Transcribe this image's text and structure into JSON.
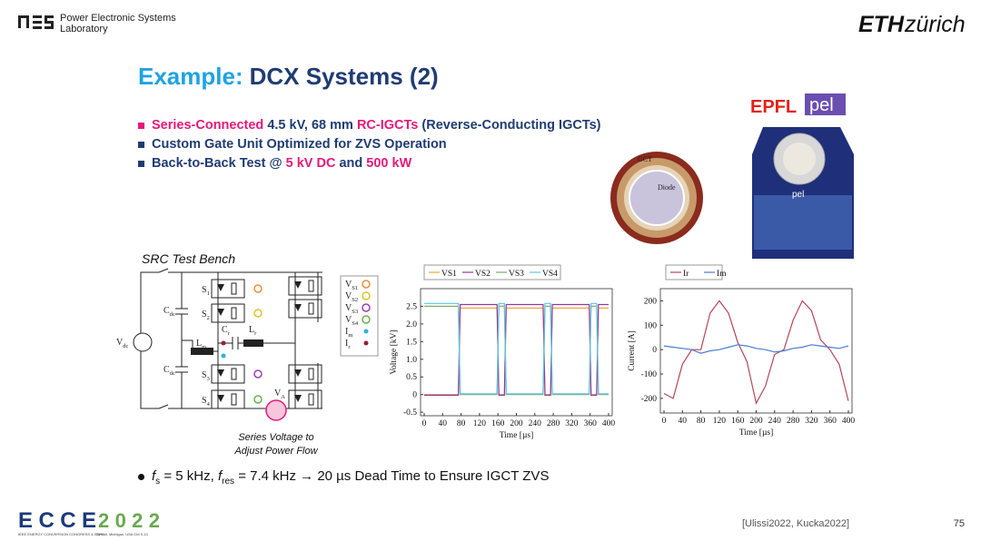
{
  "header": {
    "lab_name": [
      "Power Electronic Systems",
      "Laboratory"
    ],
    "university": {
      "bold": "ETH",
      "light": "zürich"
    }
  },
  "slide": {
    "title": {
      "prefix": "Example:",
      "main": "DCX Systems (2)"
    },
    "bullets": [
      {
        "segments": [
          {
            "text": "Series-Connected ",
            "color": "#e6197a"
          },
          {
            "text": "4.5 kV, 68 mm ",
            "color": "#1f3c73"
          },
          {
            "text": "RC-IGCTs",
            "color": "#e6197a"
          },
          {
            "text": " (Reverse-Conducting IGCTs)",
            "color": "#1f3c73"
          }
        ]
      },
      {
        "segments": [
          {
            "text": "Custom Gate Unit Optimized for ZVS Operation",
            "color": "#1f3c73"
          }
        ]
      },
      {
        "segments": [
          {
            "text": "Back-to-Back Test @ ",
            "color": "#1f3c73"
          },
          {
            "text": "5 kV DC",
            "color": "#e6197a"
          },
          {
            "text": " and ",
            "color": "#1f3c73"
          },
          {
            "text": "500 kW",
            "color": "#e6197a"
          }
        ]
      }
    ],
    "note": {
      "segments": [
        {
          "text": "f",
          "style": "italic"
        },
        {
          "text": "s",
          "style": "sub"
        },
        {
          "text": " = 5 kHz, ",
          "style": "normal"
        },
        {
          "text": "f",
          "style": "italic"
        },
        {
          "text": "res",
          "style": "sub"
        },
        {
          "text": " = 7.4 kHz → 20 µs Dead Time to Ensure IGCT ZVS",
          "style": "normal"
        }
      ]
    }
  },
  "circuit": {
    "title": "SRC Test Bench",
    "labels": [
      {
        "main": "V",
        "sub": "dc"
      },
      {
        "main": "C",
        "sub": "dc"
      },
      {
        "main": "C",
        "sub": "dc"
      },
      {
        "main": "S",
        "sub": "1"
      },
      {
        "main": "S",
        "sub": "2"
      },
      {
        "main": "S",
        "sub": "3"
      },
      {
        "main": "S",
        "sub": "4"
      },
      {
        "main": "L",
        "sub": "m"
      },
      {
        "main": "C",
        "sub": "r"
      },
      {
        "main": "L",
        "sub": "r"
      },
      {
        "main": "V",
        "sub": "A"
      }
    ],
    "caption": [
      "Series Voltage to",
      "Adjust Power Flow"
    ],
    "probes": [
      {
        "main": "V",
        "sub": "S1",
        "color": "#e8913a"
      },
      {
        "main": "V",
        "sub": "S2",
        "color": "#e0c22a"
      },
      {
        "main": "V",
        "sub": "S3",
        "color": "#9b3fb5"
      },
      {
        "main": "V",
        "sub": "S4",
        "color": "#6ab04c"
      },
      {
        "main": "I",
        "sub": "m",
        "color": "#2bb3d9"
      },
      {
        "main": "I",
        "sub": "r",
        "color": "#9b1b30"
      }
    ]
  },
  "photo": {
    "ring_label": "GCT",
    "center_label": "Diode",
    "logo": [
      "EPFL",
      "pel"
    ],
    "board_logo": "pel"
  },
  "footer": {
    "event": "ECCE",
    "year": "2022",
    "tagline": "IEEE ENERGY CONVERSION CONGRESS & EXPO",
    "venue": "Detroit, Michigan, USA Oct 9-13",
    "citation": "[Ulissi2022, Kucka2022]",
    "page": "75"
  },
  "chart_data": [
    {
      "type": "line",
      "x_label": "Time [µs]",
      "y_label": "Voltage [kV]",
      "x": [
        0,
        74,
        78,
        158,
        162,
        174,
        178,
        258,
        262,
        274,
        278,
        358,
        362,
        374,
        378,
        400
      ],
      "series": [
        {
          "name": "VS1",
          "color": "#f0a53a",
          "values": [
            0,
            0,
            2.45,
            2.45,
            0,
            0,
            2.45,
            2.45,
            0,
            0,
            2.45,
            2.45,
            0,
            0,
            2.45,
            2.45
          ]
        },
        {
          "name": "VS2",
          "color": "#8e3aa0",
          "values": [
            -0.02,
            -0.02,
            2.55,
            2.55,
            -0.02,
            -0.02,
            2.55,
            2.55,
            -0.02,
            -0.02,
            2.55,
            2.55,
            -0.02,
            -0.02,
            2.55,
            2.55
          ]
        },
        {
          "name": "VS3",
          "color": "#7cae6a",
          "values": [
            2.5,
            2.5,
            0,
            0,
            2.5,
            2.5,
            0,
            0,
            2.5,
            2.5,
            0,
            0,
            2.5,
            2.5,
            0,
            0
          ]
        },
        {
          "name": "VS4",
          "color": "#5cc3e6",
          "values": [
            2.58,
            2.58,
            0.02,
            0.02,
            2.58,
            2.58,
            0.02,
            0.02,
            2.58,
            2.58,
            0.02,
            0.02,
            2.58,
            2.58,
            0.02,
            0.02
          ]
        }
      ],
      "xlim": [
        0,
        400
      ],
      "ylim": [
        -0.6,
        3.0
      ],
      "xticks": [
        0,
        40,
        80,
        120,
        160,
        200,
        240,
        280,
        320,
        360,
        400
      ],
      "yticks": [
        -0.5,
        0,
        0.5,
        {
          "value": 1,
          "label": "1.0"
        },
        1.5,
        {
          "value": 2,
          "label": "2.0"
        },
        2.5
      ]
    },
    {
      "type": "line",
      "x_label": "Time [µs]",
      "y_label": "Current [A]",
      "x": [
        0,
        20,
        40,
        60,
        80,
        100,
        120,
        140,
        160,
        180,
        200,
        220,
        240,
        260,
        280,
        300,
        320,
        340,
        360,
        380,
        400
      ],
      "series": [
        {
          "name": "Ir",
          "color": "#b5475a",
          "values": [
            -180,
            -200,
            -60,
            0,
            0,
            150,
            200,
            150,
            30,
            -50,
            -220,
            -150,
            -20,
            0,
            120,
            200,
            160,
            40,
            0,
            -60,
            -210
          ]
        },
        {
          "name": "Im",
          "color": "#4a7bd0",
          "values": [
            15,
            10,
            5,
            0,
            -15,
            -5,
            0,
            10,
            20,
            15,
            5,
            0,
            -10,
            -5,
            5,
            10,
            20,
            15,
            10,
            5,
            15
          ]
        }
      ],
      "xlim": [
        0,
        400
      ],
      "ylim": [
        -260,
        250
      ],
      "xticks": [
        0,
        40,
        80,
        120,
        160,
        200,
        240,
        280,
        320,
        360,
        400
      ],
      "yticks": [
        -200,
        -100,
        0,
        100,
        200
      ]
    }
  ]
}
